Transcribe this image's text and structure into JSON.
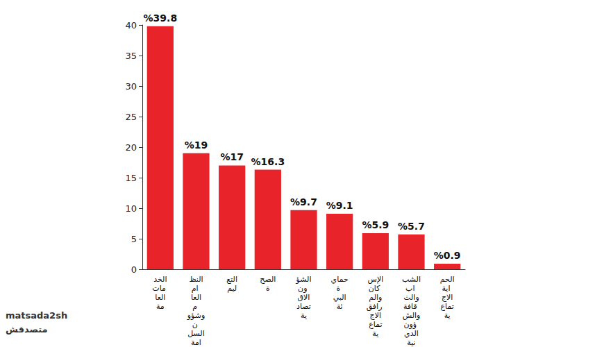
{
  "chart_data": {
    "type": "bar",
    "categories": [
      "الخدمات العامة",
      "النظام العام وشؤون السلامة",
      "التعليم",
      "الصحة",
      "الشؤون الاقتصادية",
      "حماية البيئة",
      "الإسكان والمرافق الاجتماعية",
      "الشباب والثقافة والشؤون الدينية",
      "الحماية الاجتماعية"
    ],
    "values": [
      39.8,
      19,
      17,
      16.3,
      9.7,
      9.1,
      5.9,
      5.7,
      0.9
    ],
    "value_labels": [
      "%39.8",
      "%19",
      "%17",
      "%16.3",
      "%9.7",
      "%9.1",
      "%5.9",
      "%5.7",
      "%0.9"
    ],
    "color": "#e8232a",
    "ylim": [
      0,
      40
    ],
    "yticks": [
      0,
      5,
      10,
      15,
      20,
      25,
      30,
      35,
      40
    ],
    "grid": false,
    "data_labels": true,
    "annotations": [
      "matsada2sh",
      "متصدقش"
    ]
  }
}
